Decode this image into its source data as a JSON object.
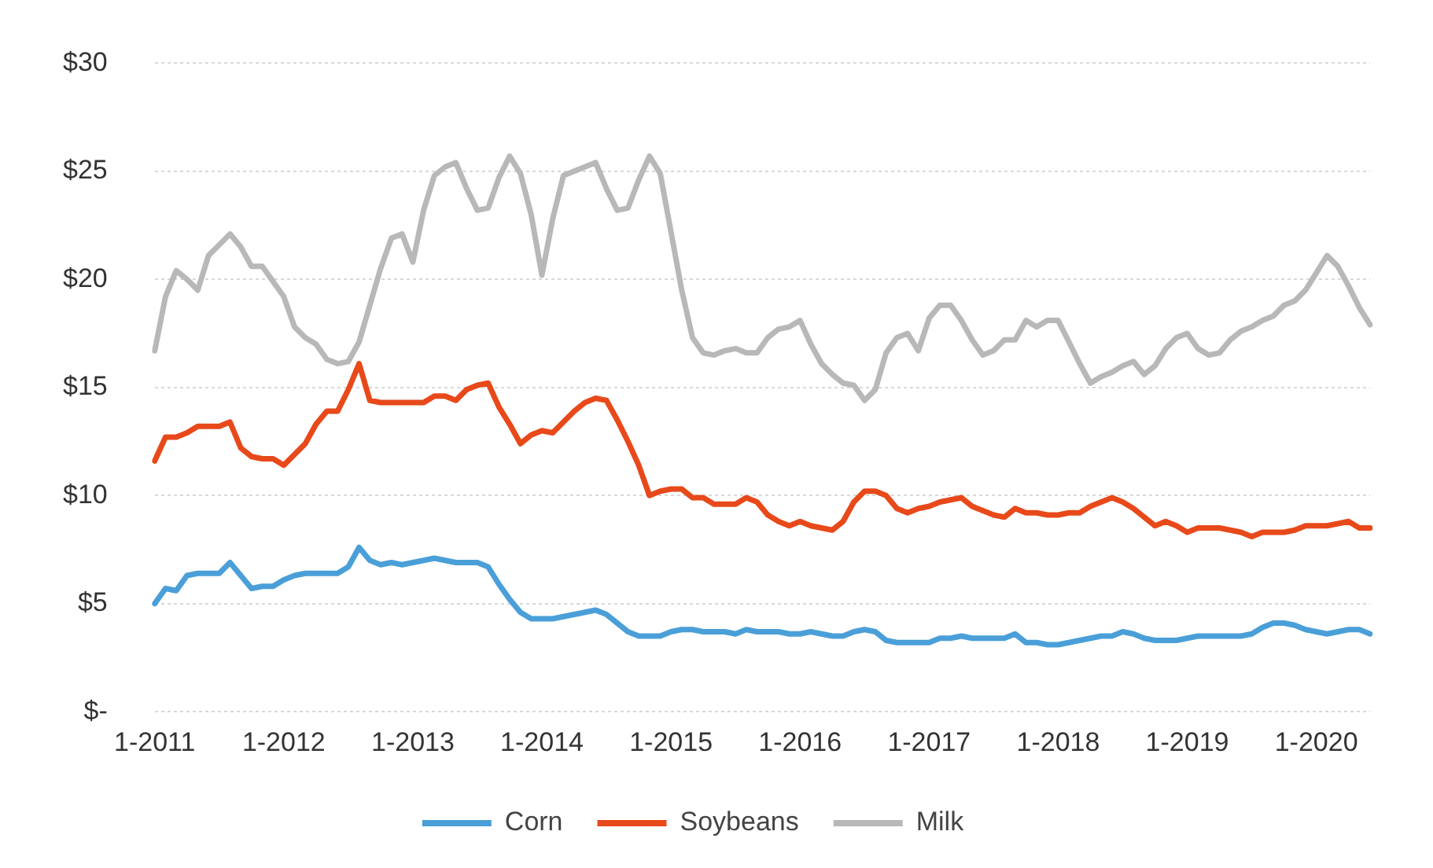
{
  "chart_data": {
    "type": "line",
    "categories": [
      "1-2011",
      null,
      null,
      null,
      null,
      null,
      null,
      null,
      null,
      null,
      null,
      null,
      "1-2012",
      null,
      null,
      null,
      null,
      null,
      null,
      null,
      null,
      null,
      null,
      null,
      "1-2013",
      null,
      null,
      null,
      null,
      null,
      null,
      null,
      null,
      null,
      null,
      null,
      "1-2014",
      null,
      null,
      null,
      null,
      null,
      null,
      null,
      null,
      null,
      null,
      null,
      "1-2015",
      null,
      null,
      null,
      null,
      null,
      null,
      null,
      null,
      null,
      null,
      null,
      "1-2016",
      null,
      null,
      null,
      null,
      null,
      null,
      null,
      null,
      null,
      null,
      null,
      "1-2017",
      null,
      null,
      null,
      null,
      null,
      null,
      null,
      null,
      null,
      null,
      null,
      "1-2018",
      null,
      null,
      null,
      null,
      null,
      null,
      null,
      null,
      null,
      null,
      null,
      "1-2019",
      null,
      null,
      null,
      null,
      null,
      null,
      null,
      null,
      null,
      null,
      null,
      "1-2020",
      null,
      null,
      null,
      null,
      null
    ],
    "series": [
      {
        "name": "Corn",
        "color": "#4a9fd8",
        "values": [
          5.0,
          5.7,
          5.6,
          6.3,
          6.4,
          6.4,
          6.4,
          6.9,
          6.3,
          5.7,
          5.8,
          5.8,
          6.1,
          6.3,
          6.4,
          6.4,
          6.4,
          6.4,
          6.7,
          7.6,
          7.0,
          6.8,
          6.9,
          6.8,
          6.9,
          7.0,
          7.1,
          7.0,
          6.9,
          6.9,
          6.9,
          6.7,
          5.9,
          5.2,
          4.6,
          4.3,
          4.3,
          4.3,
          4.4,
          4.5,
          4.6,
          4.7,
          4.5,
          4.1,
          3.7,
          3.5,
          3.5,
          3.5,
          3.7,
          3.8,
          3.8,
          3.7,
          3.7,
          3.7,
          3.6,
          3.8,
          3.7,
          3.7,
          3.7,
          3.6,
          3.6,
          3.7,
          3.6,
          3.5,
          3.5,
          3.7,
          3.8,
          3.7,
          3.3,
          3.2,
          3.2,
          3.2,
          3.2,
          3.4,
          3.4,
          3.5,
          3.4,
          3.4,
          3.4,
          3.4,
          3.6,
          3.2,
          3.2,
          3.1,
          3.1,
          3.2,
          3.3,
          3.4,
          3.5,
          3.5,
          3.7,
          3.6,
          3.4,
          3.3,
          3.3,
          3.3,
          3.4,
          3.5,
          3.5,
          3.5,
          3.5,
          3.5,
          3.6,
          3.9,
          4.1,
          4.1,
          4.0,
          3.8,
          3.7,
          3.6,
          3.7,
          3.8,
          3.8,
          3.6
        ]
      },
      {
        "name": "Soybeans",
        "color": "#e8491a",
        "values": [
          11.6,
          12.7,
          12.7,
          12.9,
          13.2,
          13.2,
          13.2,
          13.4,
          12.2,
          11.8,
          11.7,
          11.7,
          11.4,
          11.9,
          12.4,
          13.3,
          13.9,
          13.9,
          14.9,
          16.1,
          14.4,
          14.3,
          14.3,
          14.3,
          14.3,
          14.3,
          14.6,
          14.6,
          14.4,
          14.9,
          15.1,
          15.2,
          14.1,
          13.3,
          12.4,
          12.8,
          13.0,
          12.9,
          13.4,
          13.9,
          14.3,
          14.5,
          14.4,
          13.5,
          12.5,
          11.4,
          10.0,
          10.2,
          10.3,
          10.3,
          9.9,
          9.9,
          9.6,
          9.6,
          9.6,
          9.9,
          9.7,
          9.1,
          8.8,
          8.6,
          8.8,
          8.6,
          8.5,
          8.4,
          8.8,
          9.7,
          10.2,
          10.2,
          10.0,
          9.4,
          9.2,
          9.4,
          9.5,
          9.7,
          9.8,
          9.9,
          9.5,
          9.3,
          9.1,
          9.0,
          9.4,
          9.2,
          9.2,
          9.1,
          9.1,
          9.2,
          9.2,
          9.5,
          9.7,
          9.9,
          9.7,
          9.4,
          9.0,
          8.6,
          8.8,
          8.6,
          8.3,
          8.5,
          8.5,
          8.5,
          8.4,
          8.3,
          8.1,
          8.3,
          8.3,
          8.3,
          8.4,
          8.6,
          8.6,
          8.6,
          8.7,
          8.8,
          8.5,
          8.5
        ]
      },
      {
        "name": "Milk",
        "color": "#b8b8b8",
        "values": [
          16.7,
          19.2,
          20.4,
          20.0,
          19.5,
          21.1,
          21.6,
          22.1,
          21.5,
          20.6,
          20.6,
          19.9,
          19.2,
          17.8,
          17.3,
          17.0,
          16.3,
          16.1,
          16.2,
          17.1,
          18.8,
          20.5,
          21.9,
          22.1,
          20.8,
          23.2,
          24.8,
          25.2,
          25.4,
          24.2,
          23.2,
          23.3,
          24.7,
          25.7,
          24.9,
          23.0,
          20.2,
          22.8,
          24.8,
          25.0,
          25.2,
          25.4,
          24.2,
          23.2,
          23.3,
          24.6,
          25.7,
          24.9,
          22.2,
          19.5,
          17.3,
          16.6,
          16.5,
          16.7,
          16.8,
          16.6,
          16.6,
          17.3,
          17.7,
          17.8,
          18.1,
          17.0,
          16.1,
          15.6,
          15.2,
          15.1,
          14.4,
          14.9,
          16.6,
          17.3,
          17.5,
          16.7,
          18.2,
          18.8,
          18.8,
          18.1,
          17.2,
          16.5,
          16.7,
          17.2,
          17.2,
          18.1,
          17.8,
          18.1,
          18.1,
          17.1,
          16.1,
          15.2,
          15.5,
          15.7,
          16.0,
          16.2,
          15.6,
          16.0,
          16.8,
          17.3,
          17.5,
          16.8,
          16.5,
          16.6,
          17.2,
          17.6,
          17.8,
          18.1,
          18.3,
          18.8,
          19.0,
          19.5,
          20.3,
          21.1,
          20.6,
          19.7,
          18.7,
          17.9
        ]
      }
    ],
    "ylim": [
      0,
      30
    ],
    "yticks": [
      {
        "value": 0,
        "label": "$-"
      },
      {
        "value": 5,
        "label": "$5"
      },
      {
        "value": 10,
        "label": "$10"
      },
      {
        "value": 15,
        "label": "$15"
      },
      {
        "value": 20,
        "label": "$20"
      },
      {
        "value": 25,
        "label": "$25"
      },
      {
        "value": 30,
        "label": "$30"
      }
    ],
    "grid": "y",
    "legend": "bottom",
    "marker": "none",
    "line_style": "solid"
  }
}
